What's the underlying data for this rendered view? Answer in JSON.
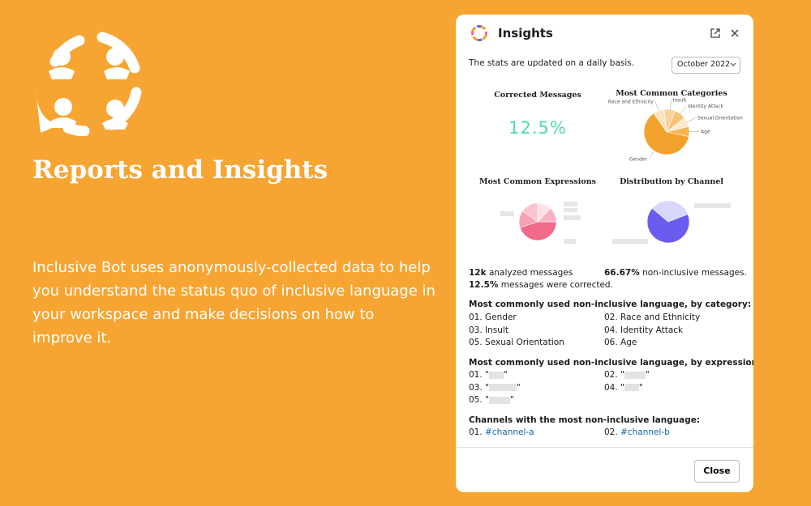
{
  "left": {
    "title": "Reports and Insights",
    "description": "Inclusive Bot uses anonymously-collected data to help you understand the status quo of inclusive language in your workspace and make decisions on how to improve it."
  },
  "modal": {
    "title": "Insights",
    "subtitle": "The stats are updated on a daily basis.",
    "month": "October 2022",
    "corrected": {
      "title": "Corrected Messages",
      "value": "12.5%"
    },
    "categories_chart": {
      "type": "pie",
      "title": "Most Common Categories",
      "slices": [
        {
          "label": "Race and Ethnicity",
          "value": 8,
          "color": "#fbe3bf"
        },
        {
          "label": "Insult",
          "value": 8,
          "color": "#f9d39a"
        },
        {
          "label": "Identity Attack",
          "value": 8,
          "color": "#f6c273"
        },
        {
          "label": "Sexual Orientation",
          "value": 7,
          "color": "#fde9cc"
        },
        {
          "label": "Age",
          "value": 7,
          "color": "#f4b44f"
        },
        {
          "label": "Gender",
          "value": 62,
          "color": "#f2a22c"
        }
      ]
    },
    "expressions_chart": {
      "type": "pie",
      "title": "Most Common Expressions",
      "slices": [
        {
          "value": 45,
          "color": "#f06a8a"
        },
        {
          "value": 15,
          "color": "#f7a1b5"
        },
        {
          "value": 15,
          "color": "#fbc3cf"
        },
        {
          "value": 12,
          "color": "#fde0e6"
        },
        {
          "value": 13,
          "color": "#f9b3c2"
        }
      ]
    },
    "channel_chart": {
      "type": "pie",
      "title": "Distribution by Channel",
      "slices": [
        {
          "value": 33,
          "color": "#d9d6fb"
        },
        {
          "value": 67,
          "color": "#6b5cf0"
        }
      ]
    },
    "stats": {
      "analyzed": {
        "value": "12k",
        "text": "analyzed messages"
      },
      "non_inclusive": {
        "value": "66.67%",
        "text": "non-inclusive messages."
      },
      "corrected": {
        "value": "12.5%",
        "text": "messages were corrected."
      }
    },
    "by_category": {
      "heading": "Most commonly used non-inclusive language, by category:",
      "items": [
        "01. Gender",
        "02. Race and Ethnicity",
        "03. Insult",
        "04. Identity Attack",
        "05. Sexual Orientation",
        "06. Age"
      ]
    },
    "by_expression": {
      "heading": "Most commonly used non-inclusive language, by expression:",
      "quote": "\"",
      "items": [
        "01.",
        "02.",
        "03.",
        "04.",
        "05."
      ]
    },
    "channels": {
      "heading": "Channels with the most non-inclusive language:",
      "items": [
        {
          "number": "01.",
          "name": "#channel-a"
        },
        {
          "number": "02.",
          "name": "#channel-b"
        }
      ]
    },
    "close": "Close"
  }
}
